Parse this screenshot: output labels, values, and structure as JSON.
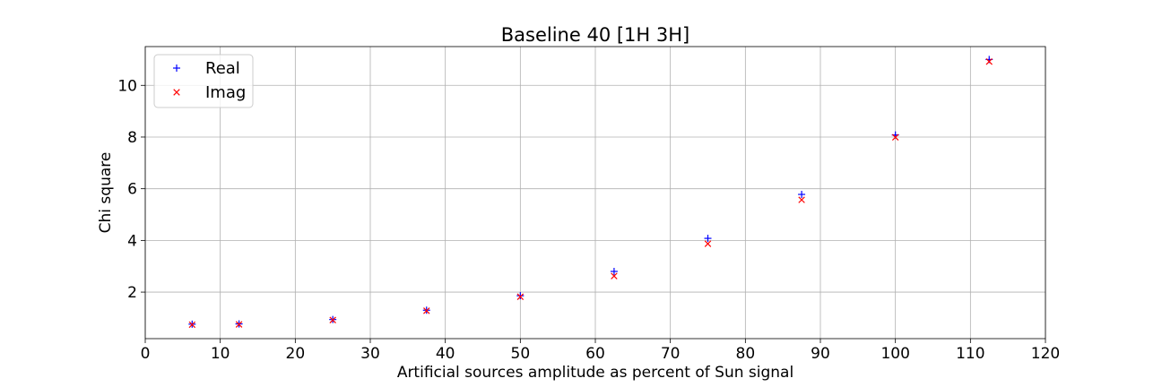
{
  "chart_data": {
    "type": "scatter",
    "title": "Baseline 40 [1H 3H]",
    "xlabel": "Artificial sources amplitude as percent of Sun signal",
    "ylabel": "Chi square",
    "xlim": [
      0,
      120
    ],
    "ylim": [
      0.2,
      11.5
    ],
    "xticks": [
      0,
      10,
      20,
      30,
      40,
      50,
      60,
      70,
      80,
      90,
      100,
      110,
      120
    ],
    "yticks": [
      2,
      4,
      6,
      8,
      10
    ],
    "grid": true,
    "legend_position": "top-left",
    "series": [
      {
        "name": "Real",
        "marker": "+",
        "color": "#0000ff",
        "x": [
          6.25,
          12.5,
          25,
          37.5,
          50,
          62.5,
          75,
          87.5,
          100,
          112.5
        ],
        "y": [
          0.76,
          0.77,
          0.94,
          1.3,
          1.86,
          2.8,
          4.08,
          5.78,
          8.08,
          11.0
        ]
      },
      {
        "name": "Imag",
        "marker": "x",
        "color": "#ff0000",
        "x": [
          6.25,
          12.5,
          25,
          37.5,
          50,
          62.5,
          75,
          87.5,
          100,
          112.5
        ],
        "y": [
          0.74,
          0.75,
          0.92,
          1.28,
          1.82,
          2.62,
          3.87,
          5.57,
          7.99,
          10.92
        ]
      }
    ]
  }
}
